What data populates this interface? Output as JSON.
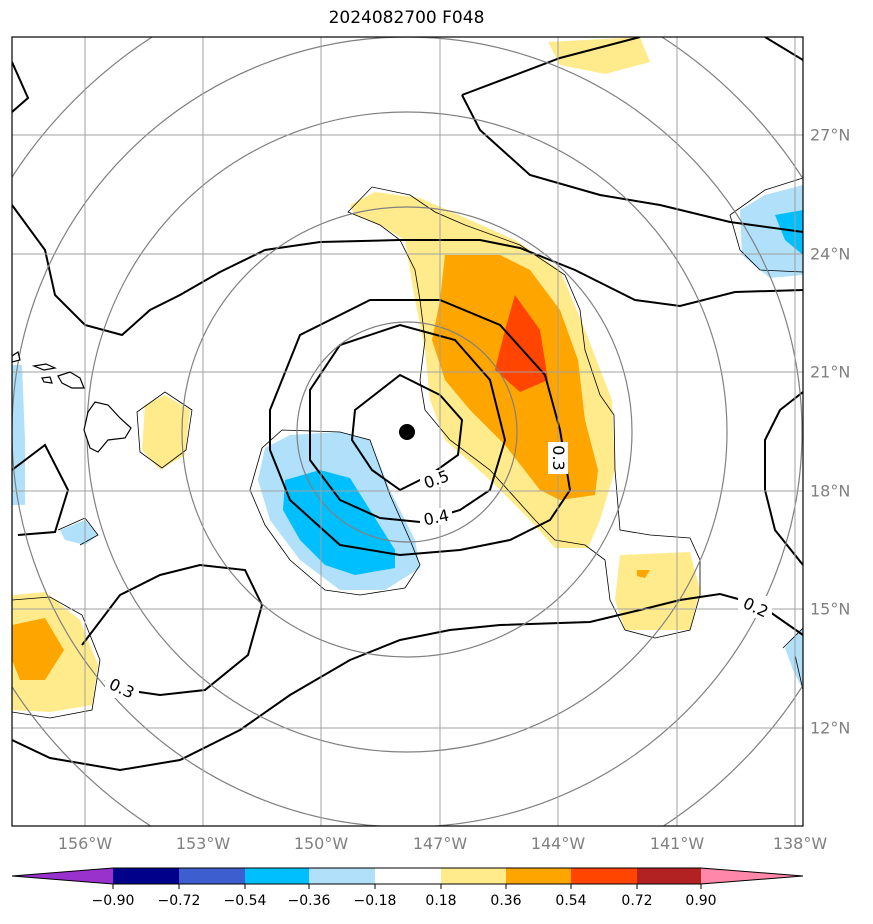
{
  "title": "2024082700 F048",
  "map": {
    "lon_labels": [
      "156°W",
      "153°W",
      "150°W",
      "147°W",
      "144°W",
      "141°W",
      "138°W"
    ],
    "lat_labels": [
      "27°N",
      "24°N",
      "21°N",
      "18°N",
      "15°N",
      "12°N"
    ],
    "contour_labels": [
      "0.5",
      "0.4",
      "0.3",
      "0.3",
      "0.2"
    ],
    "storm_center": {
      "lat": 19.4,
      "lon": -148.0
    },
    "colors": {
      "positive_weak": "#ffeb8c",
      "positive_mid": "#ffa500",
      "positive_strong": "#ff4500",
      "negative_weak": "#b0e0fa",
      "negative_mid": "#00bfff",
      "grid": "#a0a0a0",
      "range_rings": "#808080",
      "contours": "#000000"
    }
  },
  "colorbar": {
    "ticks": [
      "−0.90",
      "−0.72",
      "−0.54",
      "−0.36",
      "−0.18",
      "0.18",
      "0.36",
      "0.54",
      "0.72",
      "0.90"
    ],
    "colors": [
      "#9932cc",
      "#00008b",
      "#3c5ecf",
      "#00bfff",
      "#b0e0fa",
      "#ffffff",
      "#ffeb8c",
      "#ffa500",
      "#ff4500",
      "#b22222",
      "#ff88aa"
    ]
  }
}
